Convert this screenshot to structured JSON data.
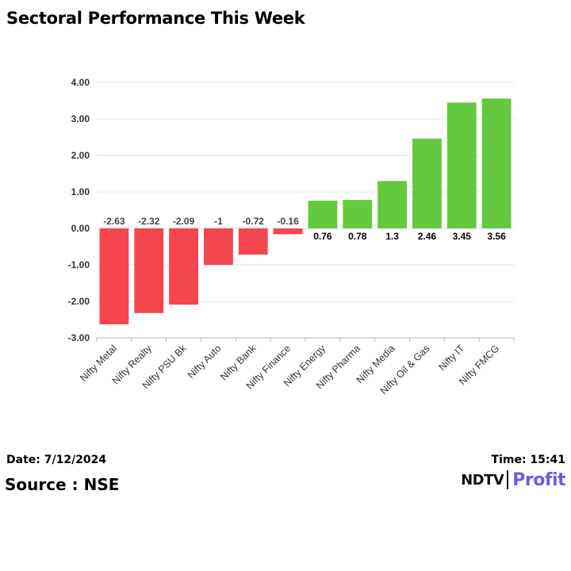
{
  "header": {
    "title": "Sectoral Performance This Week"
  },
  "footer": {
    "date": "Date: 7/12/2024",
    "time": "Time: 15:41",
    "source": "Source : NSE",
    "logo": {
      "left": "NDTV",
      "right": "Profit"
    }
  },
  "colors": {
    "negative": "#f4464e",
    "positive": "#63c93f",
    "grid": "#e2e2e2",
    "axis": "#b8b8b8",
    "brand_profit": "#6b5ce6"
  },
  "chart_data": {
    "type": "bar",
    "categories": [
      "Nifty Metal",
      "Nifty Realty",
      "Nifty PSU Bk",
      "Nifty Auto",
      "Nifty Bank",
      "Nifty Finance",
      "Nifty Energy",
      "Nifty Pharma",
      "Nifty Media",
      "Nifty Oil & Gas",
      "Nifty IT",
      "Nifty FMCG"
    ],
    "values": [
      -2.63,
      -2.32,
      -2.09,
      -1,
      -0.72,
      -0.16,
      0.76,
      0.78,
      1.3,
      2.46,
      3.45,
      3.56
    ],
    "data_labels": [
      "-2.63",
      "-2.32",
      "-2.09",
      "-1",
      "-0.72",
      "-0.16",
      "0.76",
      "0.78",
      "1.3",
      "2.46",
      "3.45",
      "3.56"
    ],
    "y_ticks": [
      4,
      3,
      2,
      1,
      0,
      -1,
      -2,
      -3
    ],
    "y_tick_labels": [
      "4.00",
      "3.00",
      "2.00",
      "1.00",
      "0.00",
      "-1.00",
      "-2.00",
      "-3.00"
    ],
    "ylim": [
      -3,
      4
    ],
    "grid": true,
    "legend": "none"
  }
}
